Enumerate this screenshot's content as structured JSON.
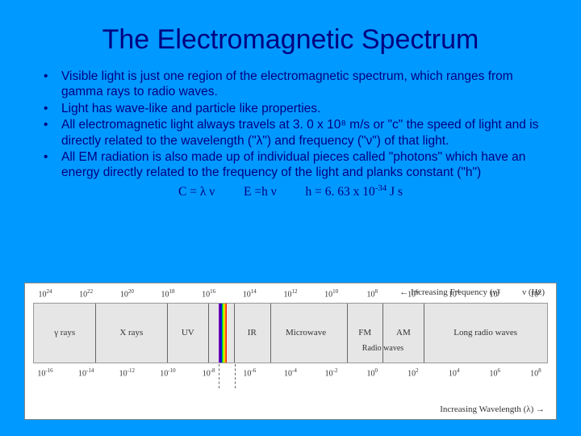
{
  "title": "The Electromagnetic Spectrum",
  "bullets": [
    "Visible light is just one region of the electromagnetic spectrum, which ranges from gamma rays to radio waves.",
    "Light has wave-like and particle like properties.",
    "All electromagnetic light always travels at 3. 0 x 10⁸ m/s or \"c\" the speed of light and is directly related to the wavelength (\"λ\") and frequency (\"ν\") of that light.",
    "All EM radiation is also made up of individual pieces called \"photons\" which have an energy directly related to the frequency of the light and planks constant (\"h\")"
  ],
  "equations": {
    "eq1": "C = λ ν",
    "eq2": "E =h ν",
    "eq3_prefix": "h = 6. 63 x 10",
    "eq3_exp": "-34",
    "eq3_suffix": " J s"
  },
  "diagram": {
    "freq_label": "← Increasing Frequency (ν)",
    "freq_unit": "ν (Hz)",
    "freq_exponents": [
      "24",
      "22",
      "20",
      "18",
      "16",
      "14",
      "12",
      "10",
      "8",
      "6",
      "4",
      "2",
      "0"
    ],
    "wave_label": "Increasing Wavelength (λ) →",
    "wave_exponents": [
      "-16",
      "-14",
      "-12",
      "-10",
      "-8",
      "-6",
      "-4",
      "-2",
      "0",
      "2",
      "4",
      "6",
      "8"
    ],
    "dividers_pct": [
      12,
      26,
      34,
      39,
      46,
      61,
      68,
      76
    ],
    "visible_left_pct": 36,
    "regions": [
      {
        "label": "γ rays",
        "left_pct": 6
      },
      {
        "label": "X rays",
        "left_pct": 19
      },
      {
        "label": "UV",
        "left_pct": 30
      },
      {
        "label": "IR",
        "left_pct": 42.5
      },
      {
        "label": "Microwave",
        "left_pct": 53
      },
      {
        "label": "FM",
        "left_pct": 64.5
      },
      {
        "label": "AM",
        "left_pct": 72
      },
      {
        "label": "Long radio waves",
        "left_pct": 88
      }
    ],
    "sub_label": {
      "text": "Radio waves",
      "left_pct": 68
    },
    "dash_lines_pct": [
      36,
      39
    ],
    "colors": {
      "slide_bg": "#0099ff",
      "title_color": "#000080",
      "text_color": "#000080",
      "diagram_bg": "#ffffff",
      "band_bg": "#e6e6e6",
      "divider_color": "#666666"
    }
  }
}
